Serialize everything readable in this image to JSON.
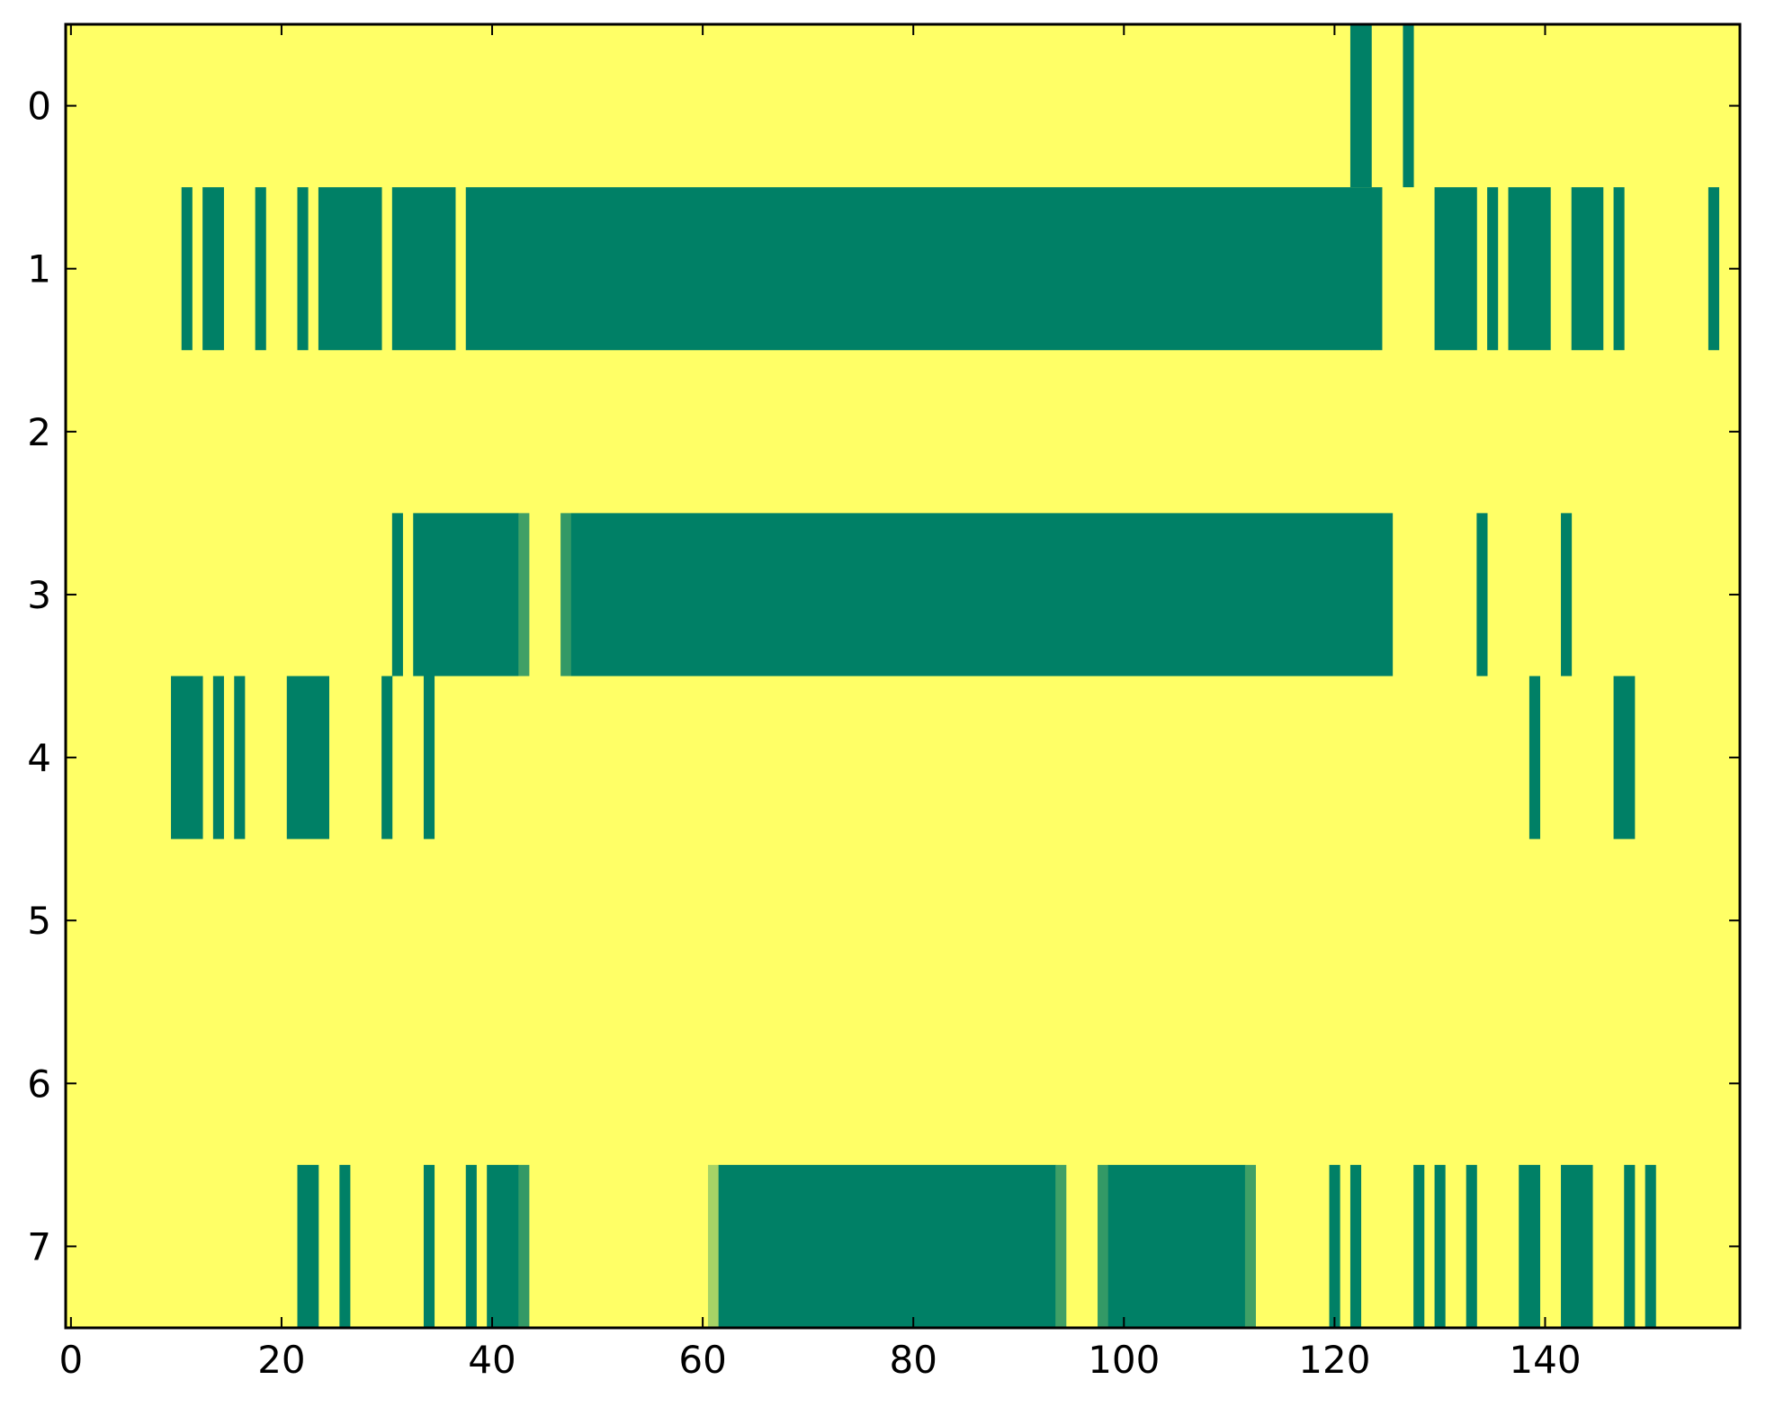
{
  "chart_data": {
    "type": "heatmap",
    "title": "",
    "xlabel": "",
    "ylabel": "",
    "xlim": [
      -0.5,
      158.5
    ],
    "ylim": [
      7.5,
      -0.5
    ],
    "xticks": [
      0,
      20,
      40,
      60,
      80,
      100,
      120,
      140
    ],
    "xtick_labels": [
      "0",
      "20",
      "40",
      "60",
      "80",
      "100",
      "120",
      "140"
    ],
    "yticks": [
      0,
      1,
      2,
      3,
      4,
      5,
      6,
      7
    ],
    "ytick_labels": [
      "0",
      "1",
      "2",
      "3",
      "4",
      "5",
      "6",
      "7"
    ],
    "grid": false,
    "legend": "none",
    "colormap": "summer_r",
    "value_range": [
      0,
      1
    ],
    "background_value": 0,
    "colors": {
      "low": "#ffff66",
      "high": "#008066",
      "axis": "#000000"
    },
    "rows": [
      {
        "row": 0,
        "segments": [
          [
            122,
            123,
            1
          ],
          [
            127,
            127,
            1
          ]
        ]
      },
      {
        "row": 1,
        "segments": [
          [
            11,
            11,
            1
          ],
          [
            13,
            14,
            1
          ],
          [
            18,
            18,
            1
          ],
          [
            22,
            22,
            1
          ],
          [
            24,
            29,
            1
          ],
          [
            31,
            36,
            1
          ],
          [
            38,
            123,
            1
          ],
          [
            124,
            124,
            1
          ],
          [
            130,
            133,
            1
          ],
          [
            135,
            135,
            1
          ],
          [
            137,
            140,
            1
          ],
          [
            143,
            145,
            1
          ],
          [
            147,
            147,
            1
          ],
          [
            156,
            156,
            1
          ]
        ]
      },
      {
        "row": 2,
        "segments": []
      },
      {
        "row": 3,
        "segments": [
          [
            31,
            31,
            1
          ],
          [
            33,
            42,
            1
          ],
          [
            43,
            43,
            0.75
          ],
          [
            47,
            47,
            0.8
          ],
          [
            48,
            125,
            1
          ],
          [
            134,
            134,
            1
          ],
          [
            142,
            142,
            1
          ]
        ]
      },
      {
        "row": 4,
        "segments": [
          [
            10,
            12,
            1
          ],
          [
            14,
            14,
            1
          ],
          [
            16,
            16,
            1
          ],
          [
            21,
            24,
            1
          ],
          [
            30,
            30,
            1
          ],
          [
            34,
            34,
            1
          ],
          [
            139,
            139,
            1
          ],
          [
            147,
            148,
            1
          ]
        ]
      },
      {
        "row": 5,
        "segments": []
      },
      {
        "row": 6,
        "segments": []
      },
      {
        "row": 7,
        "segments": [
          [
            22,
            23,
            1
          ],
          [
            26,
            26,
            1
          ],
          [
            34,
            34,
            1
          ],
          [
            38,
            38,
            1
          ],
          [
            40,
            42,
            1
          ],
          [
            43,
            43,
            0.8
          ],
          [
            61,
            61,
            0.35
          ],
          [
            62,
            93,
            1
          ],
          [
            94,
            94,
            0.75
          ],
          [
            98,
            98,
            0.8
          ],
          [
            99,
            111,
            1
          ],
          [
            112,
            112,
            0.75
          ],
          [
            120,
            120,
            1
          ],
          [
            122,
            122,
            1
          ],
          [
            128,
            128,
            1
          ],
          [
            130,
            130,
            1
          ],
          [
            133,
            133,
            1
          ],
          [
            138,
            139,
            1
          ],
          [
            142,
            144,
            1
          ],
          [
            148,
            148,
            1
          ],
          [
            150,
            150,
            1
          ]
        ]
      }
    ]
  }
}
